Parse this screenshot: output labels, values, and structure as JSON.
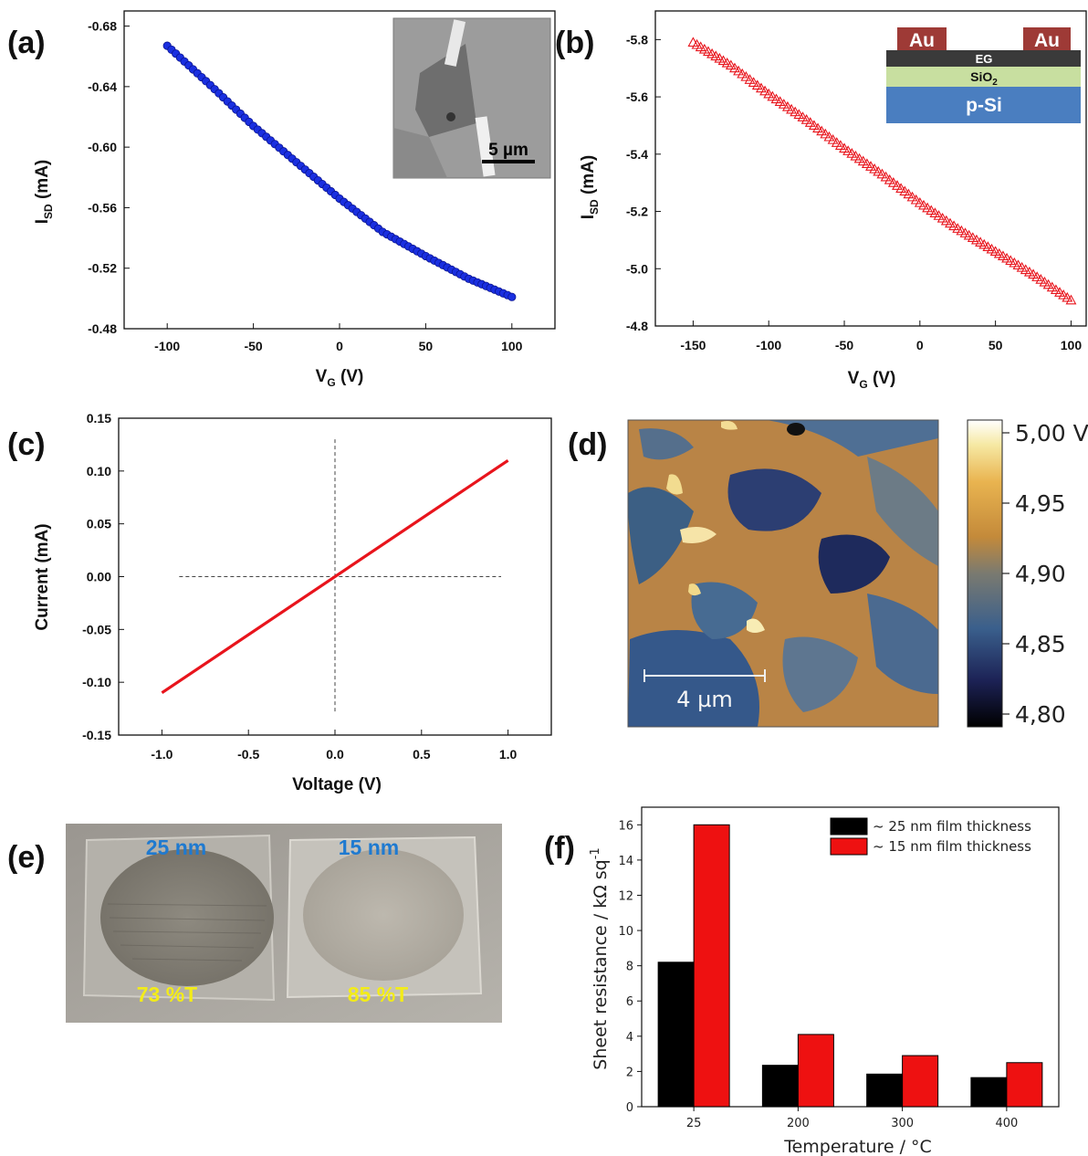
{
  "panels": {
    "a": "(a)",
    "b": "(b)",
    "c": "(c)",
    "d": "(d)",
    "e": "(e)",
    "f": "(f)"
  },
  "chart_data": [
    {
      "id": "a",
      "type": "scatter",
      "xlabel": "V_G (V)",
      "ylabel": "I_SD (mA)",
      "xlim": [
        -125,
        125
      ],
      "ylim": [
        -0.48,
        -0.69
      ],
      "y_inverted": true,
      "xticks": [
        -100,
        -50,
        0,
        50,
        100
      ],
      "yticks": [
        -0.48,
        -0.52,
        -0.56,
        -0.6,
        -0.64,
        -0.68
      ],
      "ytick_labels": [
        "-0.48",
        "-0.52",
        "-0.56",
        "-0.60",
        "-0.64",
        "-0.68"
      ],
      "marker_color": "#1a2fe0",
      "series": [
        {
          "x": [
            -100,
            -75,
            -50,
            -25,
            0,
            25,
            50,
            75,
            100
          ],
          "y": [
            -0.667,
            -0.641,
            -0.614,
            -0.59,
            -0.566,
            -0.544,
            -0.528,
            -0.513,
            -0.501
          ]
        }
      ],
      "inset": {
        "type": "SEM image",
        "scale_bar": "5 µm"
      }
    },
    {
      "id": "b",
      "type": "scatter",
      "xlabel": "V_G (V)",
      "ylabel": "I_SD (mA)",
      "xlim": [
        -175,
        110
      ],
      "ylim": [
        -4.8,
        -5.9
      ],
      "y_inverted": true,
      "xticks": [
        -150,
        -100,
        -50,
        0,
        50,
        100
      ],
      "yticks": [
        -4.8,
        -5.0,
        -5.2,
        -5.4,
        -5.6,
        -5.8
      ],
      "ytick_labels": [
        "-4.8",
        "-5.0",
        "-5.2",
        "-5.4",
        "-5.6",
        "-5.8"
      ],
      "marker_color": "#e8141c",
      "series": [
        {
          "x": [
            -150,
            -125,
            -100,
            -75,
            -50,
            -25,
            0,
            25,
            50,
            75,
            100
          ],
          "y": [
            -5.79,
            -5.71,
            -5.61,
            -5.52,
            -5.42,
            -5.33,
            -5.23,
            -5.14,
            -5.06,
            -4.98,
            -4.89
          ]
        }
      ],
      "inset": {
        "type": "device schematic",
        "layers": [
          "Au",
          "Au",
          "EG",
          "SiO2",
          "p-Si"
        ]
      }
    },
    {
      "id": "c",
      "type": "line",
      "xlabel": "Voltage (V)",
      "ylabel": "Current (mA)",
      "xlim": [
        -1.25,
        1.25
      ],
      "ylim": [
        -0.15,
        0.15
      ],
      "xticks": [
        -1.0,
        -0.5,
        0.0,
        0.5,
        1.0
      ],
      "xtick_labels": [
        "-1.0",
        "-0.5",
        "0.0",
        "0.5",
        "1.0"
      ],
      "yticks": [
        -0.15,
        -0.1,
        -0.05,
        0.0,
        0.05,
        0.1,
        0.15
      ],
      "ytick_labels": [
        "-0.15",
        "-0.10",
        "-0.05",
        "0.00",
        "0.05",
        "0.10",
        "0.15"
      ],
      "line_color": "#e8141c",
      "series": [
        {
          "x": [
            -1.0,
            1.0
          ],
          "y": [
            -0.11,
            0.11
          ]
        }
      ],
      "reference_lines": "dashed lines at x=0 and y=0"
    },
    {
      "id": "d",
      "type": "heatmap",
      "colorbar_ticks": [
        "5,00 V",
        "4,95",
        "4,90",
        "4,85",
        "4,80"
      ],
      "range": [
        4.8,
        5.0
      ],
      "scale_bar": "4 µm"
    },
    {
      "id": "e",
      "type": "photo",
      "labels_top": [
        "25 nm",
        "15 nm"
      ],
      "labels_bottom": [
        "73 %T",
        "85 %T"
      ]
    },
    {
      "id": "f",
      "type": "bar",
      "categories": [
        "25",
        "200",
        "300",
        "400"
      ],
      "xlabel": "Temperature / °C",
      "ylabel": "Sheet resistance / kΩ sq",
      "ylabel_sup": "-1",
      "ylim": [
        0,
        17
      ],
      "yticks": [
        0,
        2,
        4,
        6,
        8,
        10,
        12,
        14,
        16
      ],
      "series": [
        {
          "name": "~ 25 nm film thickness",
          "color": "#000000",
          "values": [
            8.2,
            2.35,
            1.85,
            1.65
          ]
        },
        {
          "name": "~ 15 nm film thickness",
          "color": "#ee1111",
          "values": [
            16.0,
            4.1,
            2.9,
            2.5
          ]
        }
      ],
      "legend_position": "top-right"
    }
  ]
}
